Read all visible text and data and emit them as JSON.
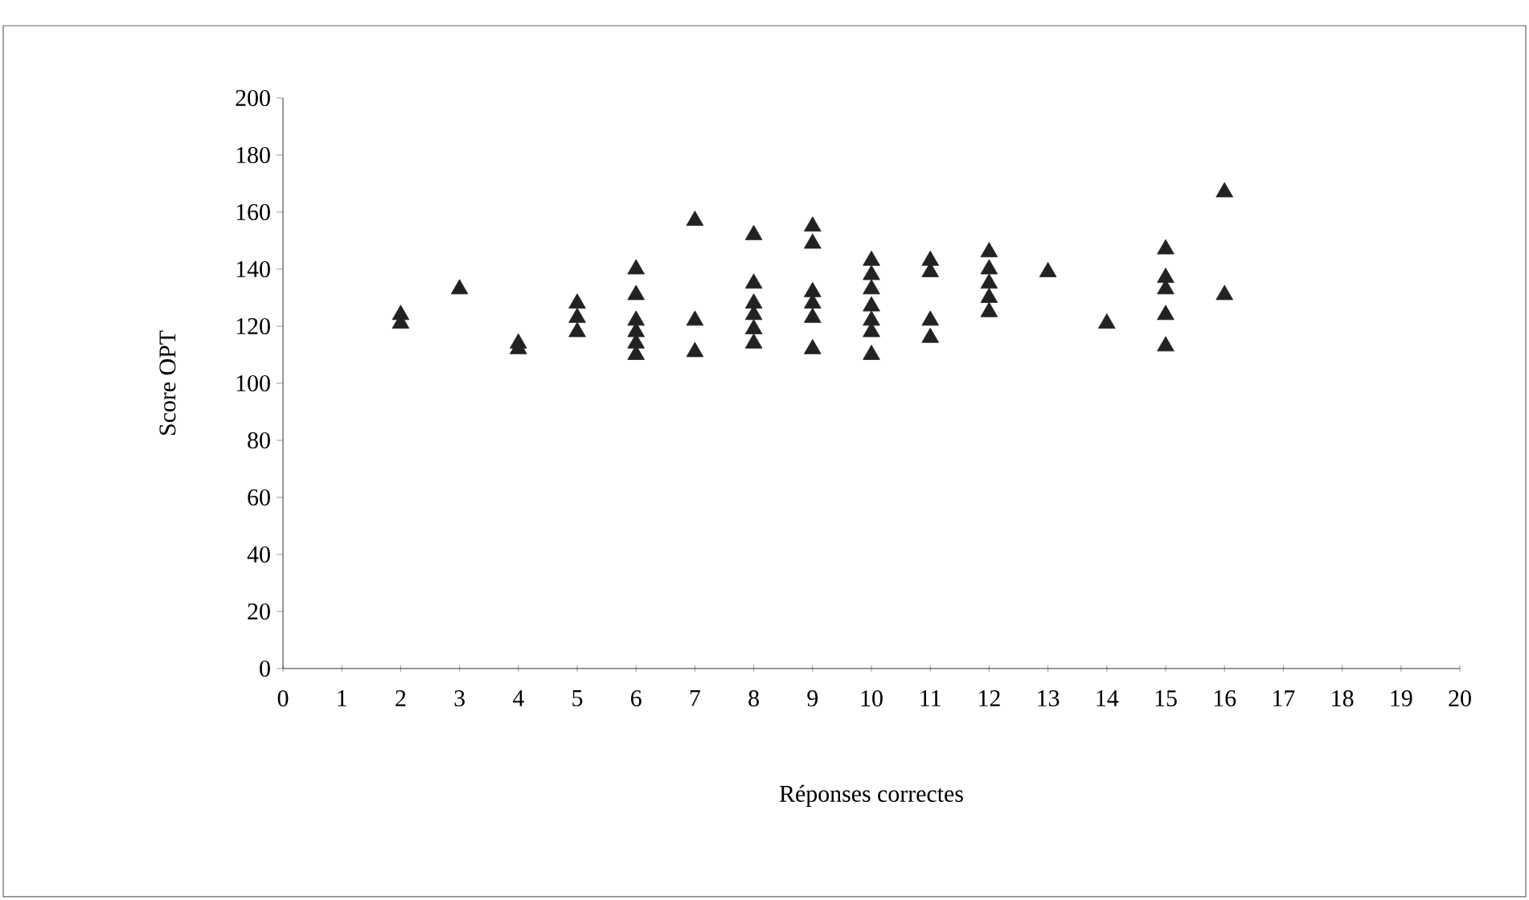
{
  "chart_data": {
    "type": "scatter",
    "xlabel": "Réponses correctes",
    "ylabel": "Score OPT",
    "x": [
      2,
      2,
      3,
      4,
      4,
      5,
      5,
      5,
      6,
      6,
      6,
      6,
      6,
      6,
      7,
      7,
      7,
      8,
      8,
      8,
      8,
      8,
      8,
      9,
      9,
      9,
      9,
      9,
      9,
      10,
      10,
      10,
      10,
      10,
      10,
      10,
      11,
      11,
      11,
      11,
      12,
      12,
      12,
      12,
      12,
      13,
      14,
      15,
      15,
      15,
      15,
      15,
      16,
      16
    ],
    "series": [
      {
        "color": "#222222",
        "values": [
          124,
          121,
          133,
          114,
          112,
          128,
          123,
          118,
          140,
          131,
          122,
          118,
          114,
          110,
          157,
          122,
          111,
          152,
          135,
          128,
          124,
          119,
          114,
          155,
          149,
          132,
          128,
          123,
          112,
          143,
          138,
          133,
          127,
          122,
          118,
          110,
          143,
          139,
          122,
          116,
          146,
          140,
          135,
          130,
          125,
          139,
          121,
          147,
          137,
          133,
          124,
          113,
          167,
          131
        ]
      }
    ],
    "xlim": [
      0,
      20
    ],
    "xticks": [
      0,
      1,
      2,
      3,
      4,
      5,
      6,
      7,
      8,
      9,
      10,
      11,
      12,
      13,
      14,
      15,
      16,
      17,
      18,
      19,
      20
    ],
    "ylim": [
      0,
      200
    ],
    "yticks": [
      0,
      20,
      40,
      60,
      80,
      100,
      120,
      140,
      160,
      180,
      200
    ],
    "marker": "triangle",
    "grid": false
  }
}
